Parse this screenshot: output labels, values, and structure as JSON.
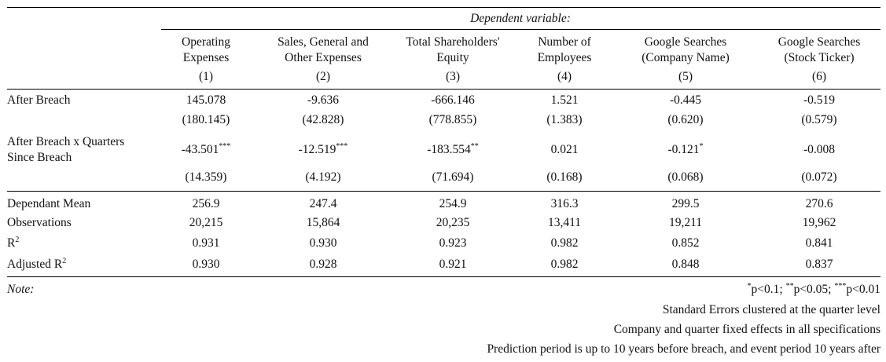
{
  "header": {
    "dependent_variable": "Dependent variable:",
    "columns": [
      {
        "line1": "Operating",
        "line2": "Expenses",
        "num": "(1)"
      },
      {
        "line1": "Sales, General and",
        "line2": "Other Expenses",
        "num": "(2)"
      },
      {
        "line1": "Total Shareholders'",
        "line2": "Equity",
        "num": "(3)"
      },
      {
        "line1": "Number of",
        "line2": "Employees",
        "num": "(4)"
      },
      {
        "line1": "Google Searches",
        "line2": "(Company Name)",
        "num": "(5)"
      },
      {
        "line1": "Google Searches",
        "line2": "(Stock Ticker)",
        "num": "(6)"
      }
    ]
  },
  "rows": {
    "after_breach": {
      "label": "After Breach",
      "coefs": [
        "145.078",
        "-9.636",
        "-666.146",
        "1.521",
        "-0.445",
        "-0.519"
      ],
      "se": [
        "(180.145)",
        "(42.828)",
        "(778.855)",
        "(1.383)",
        "(0.620)",
        "(0.579)"
      ]
    },
    "interaction": {
      "label_line1": "After Breach x Quarters",
      "label_line2": "Since Breach",
      "coefs": [
        "-43.501",
        "-12.519",
        "-183.554",
        "0.021",
        "-0.121",
        "-0.008"
      ],
      "stars": [
        "***",
        "***",
        "**",
        "",
        "*",
        ""
      ],
      "se": [
        "(14.359)",
        "(4.192)",
        "(71.694)",
        "(0.168)",
        "(0.068)",
        "(0.072)"
      ]
    }
  },
  "stats": {
    "dependant_mean": {
      "label": "Dependant Mean",
      "values": [
        "256.9",
        "247.4",
        "254.9",
        "316.3",
        "299.5",
        "270.6"
      ]
    },
    "observations": {
      "label": "Observations",
      "values": [
        "20,215",
        "15,864",
        "20,235",
        "13,411",
        "19,211",
        "19,962"
      ]
    },
    "r2": {
      "label": "R",
      "sup": "2",
      "values": [
        "0.931",
        "0.930",
        "0.923",
        "0.982",
        "0.852",
        "0.841"
      ]
    },
    "adj_r2": {
      "label": "Adjusted R",
      "sup": "2",
      "values": [
        "0.930",
        "0.928",
        "0.921",
        "0.982",
        "0.848",
        "0.837"
      ]
    }
  },
  "notes": {
    "label": "Note:",
    "sig_star1": "*",
    "sig_text1": "p<0.1; ",
    "sig_star2": "**",
    "sig_text2": "p<0.05; ",
    "sig_star3": "***",
    "sig_text3": "p<0.01",
    "line2": "Standard Errors clustered at the quarter level",
    "line3": "Company and quarter fixed effects in all specifications",
    "line4": "Prediction period is up to 10 years before breach, and event period 10 years after"
  }
}
